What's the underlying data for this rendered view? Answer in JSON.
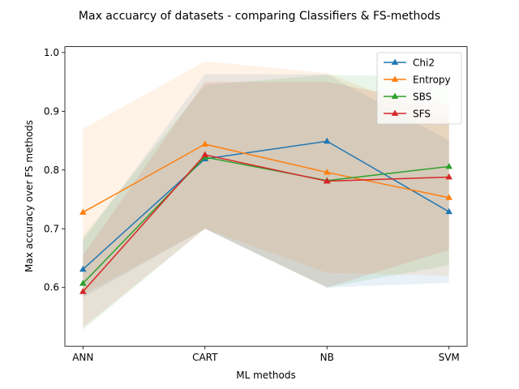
{
  "chart_data": {
    "type": "line",
    "title": "Max accuarcy of datasets - comparing Classifiers & FS-methods",
    "xlabel": "ML methods",
    "ylabel": "Max accuracy over FS methods",
    "categories": [
      "ANN",
      "CART",
      "NB",
      "SVM"
    ],
    "ylim": [
      0.5,
      1.01
    ],
    "yticks": [
      0.6,
      0.7,
      0.8,
      0.9,
      1.0
    ],
    "ytick_labels": [
      "0.6",
      "0.7",
      "0.8",
      "0.9",
      "1.0"
    ],
    "grid": false,
    "legend_position": "top-right",
    "marker": "triangle-up",
    "series": [
      {
        "name": "Chi2",
        "color": "#1f77b4",
        "values": [
          0.631,
          0.819,
          0.849,
          0.729
        ],
        "band_low": [
          0.583,
          0.7,
          0.6,
          0.608
        ],
        "band_high": [
          0.68,
          0.963,
          0.963,
          0.85
        ]
      },
      {
        "name": "Entropy",
        "color": "#ff7f0e",
        "values": [
          0.728,
          0.844,
          0.796,
          0.753
        ],
        "band_low": [
          0.588,
          0.7,
          0.625,
          0.62
        ],
        "band_high": [
          0.87,
          0.985,
          0.965,
          0.885
        ]
      },
      {
        "name": "SBS",
        "color": "#2ca02c",
        "values": [
          0.607,
          0.822,
          0.782,
          0.806
        ],
        "band_low": [
          0.528,
          0.7,
          0.6,
          0.638
        ],
        "band_high": [
          0.687,
          0.945,
          0.962,
          0.958
        ]
      },
      {
        "name": "SFS",
        "color": "#d62728",
        "values": [
          0.593,
          0.826,
          0.781,
          0.788
        ],
        "band_low": [
          0.532,
          0.7,
          0.6,
          0.664
        ],
        "band_high": [
          0.655,
          0.95,
          0.95,
          0.91
        ]
      }
    ]
  }
}
